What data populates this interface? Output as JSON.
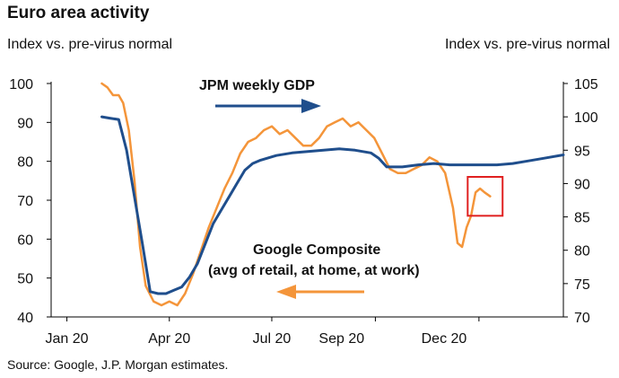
{
  "header": {
    "title": "Euro area activity",
    "left_axis_caption": "Index vs. pre-virus normal",
    "right_axis_caption": "Index vs. pre-virus normal"
  },
  "footer": {
    "source": "Source: Google, J.P. Morgan estimates."
  },
  "colors": {
    "gdp": "#1f4e8c",
    "google": "#f4953a",
    "highlight": "#e02020",
    "axis": "#000000"
  },
  "chart_data": {
    "type": "line",
    "title": "Euro area activity",
    "x_axis": {
      "type": "date",
      "range": [
        "2020-01-01",
        "2021-03-31"
      ],
      "tick_labels": [
        {
          "date": "2020-01-15",
          "label": "Jan 20"
        },
        {
          "date": "2020-04-15",
          "label": "Apr 20"
        },
        {
          "date": "2020-07-15",
          "label": "Jul 20"
        },
        {
          "date": "2020-09-15",
          "label": "Sep 20"
        },
        {
          "date": "2020-12-15",
          "label": "Dec 20"
        }
      ],
      "minor_ticks": [
        "2020-01-15",
        "2020-04-15",
        "2020-07-15",
        "2020-10-15",
        "2021-01-15"
      ]
    },
    "y_left": {
      "label": "Index vs. pre-virus normal",
      "range": [
        40,
        100
      ],
      "ticks": [
        40,
        50,
        60,
        70,
        80,
        90,
        100
      ]
    },
    "y_right": {
      "label": "Index vs. pre-virus normal",
      "range": [
        70,
        105
      ],
      "ticks": [
        70,
        75,
        80,
        85,
        90,
        95,
        100,
        105
      ]
    },
    "grid": false,
    "series": [
      {
        "name": "Google Composite (avg of retail, at home, at work)",
        "axis": "left",
        "color": "#f4953a",
        "points": [
          [
            "2020-02-15",
            100
          ],
          [
            "2020-02-20",
            99
          ],
          [
            "2020-02-25",
            97
          ],
          [
            "2020-03-01",
            97
          ],
          [
            "2020-03-05",
            95
          ],
          [
            "2020-03-10",
            88
          ],
          [
            "2020-03-15",
            75
          ],
          [
            "2020-03-20",
            58
          ],
          [
            "2020-03-25",
            48
          ],
          [
            "2020-04-01",
            44
          ],
          [
            "2020-04-08",
            43
          ],
          [
            "2020-04-15",
            44
          ],
          [
            "2020-04-22",
            43
          ],
          [
            "2020-04-29",
            46
          ],
          [
            "2020-05-06",
            51
          ],
          [
            "2020-05-13",
            57
          ],
          [
            "2020-05-20",
            63
          ],
          [
            "2020-05-27",
            68
          ],
          [
            "2020-06-03",
            73
          ],
          [
            "2020-06-10",
            77
          ],
          [
            "2020-06-17",
            82
          ],
          [
            "2020-06-24",
            85
          ],
          [
            "2020-07-01",
            86
          ],
          [
            "2020-07-08",
            88
          ],
          [
            "2020-07-15",
            89
          ],
          [
            "2020-07-22",
            87
          ],
          [
            "2020-07-29",
            88
          ],
          [
            "2020-08-05",
            86
          ],
          [
            "2020-08-12",
            84
          ],
          [
            "2020-08-19",
            84
          ],
          [
            "2020-08-26",
            86
          ],
          [
            "2020-09-02",
            89
          ],
          [
            "2020-09-09",
            90
          ],
          [
            "2020-09-16",
            91
          ],
          [
            "2020-09-23",
            89
          ],
          [
            "2020-09-30",
            90
          ],
          [
            "2020-10-07",
            88
          ],
          [
            "2020-10-14",
            86
          ],
          [
            "2020-10-21",
            82
          ],
          [
            "2020-10-28",
            78
          ],
          [
            "2020-11-04",
            77
          ],
          [
            "2020-11-11",
            77
          ],
          [
            "2020-11-18",
            78
          ],
          [
            "2020-11-25",
            79
          ],
          [
            "2020-12-02",
            81
          ],
          [
            "2020-12-09",
            80
          ],
          [
            "2020-12-16",
            77
          ],
          [
            "2020-12-23",
            68
          ],
          [
            "2020-12-27",
            59
          ],
          [
            "2020-12-31",
            58
          ],
          [
            "2021-01-04",
            63
          ],
          [
            "2021-01-08",
            66
          ],
          [
            "2021-01-12",
            72
          ],
          [
            "2021-01-16",
            73
          ],
          [
            "2021-01-20",
            72
          ],
          [
            "2021-01-25",
            71
          ]
        ]
      },
      {
        "name": "JPM weekly GDP",
        "axis": "right",
        "color": "#1f4e8c",
        "points": [
          [
            "2020-02-15",
            100
          ],
          [
            "2020-02-22",
            99.8
          ],
          [
            "2020-03-01",
            99.6
          ],
          [
            "2020-03-08",
            95
          ],
          [
            "2020-03-15",
            88
          ],
          [
            "2020-03-22",
            81
          ],
          [
            "2020-03-29",
            73.8
          ],
          [
            "2020-04-05",
            73.5
          ],
          [
            "2020-04-12",
            73.5
          ],
          [
            "2020-04-19",
            74
          ],
          [
            "2020-04-26",
            74.5
          ],
          [
            "2020-05-03",
            76
          ],
          [
            "2020-05-10",
            78
          ],
          [
            "2020-05-17",
            81
          ],
          [
            "2020-05-24",
            84
          ],
          [
            "2020-05-31",
            86
          ],
          [
            "2020-06-07",
            88
          ],
          [
            "2020-06-14",
            90
          ],
          [
            "2020-06-21",
            92
          ],
          [
            "2020-06-28",
            93
          ],
          [
            "2020-07-05",
            93.5
          ],
          [
            "2020-07-19",
            94.2
          ],
          [
            "2020-08-02",
            94.6
          ],
          [
            "2020-08-16",
            94.8
          ],
          [
            "2020-08-30",
            95
          ],
          [
            "2020-09-13",
            95.2
          ],
          [
            "2020-09-27",
            95
          ],
          [
            "2020-10-11",
            94.6
          ],
          [
            "2020-10-18",
            93.8
          ],
          [
            "2020-10-25",
            92.5
          ],
          [
            "2020-11-08",
            92.5
          ],
          [
            "2020-11-22",
            92.8
          ],
          [
            "2020-12-06",
            93
          ],
          [
            "2020-12-20",
            92.8
          ],
          [
            "2021-01-03",
            92.8
          ],
          [
            "2021-01-17",
            92.8
          ],
          [
            "2021-01-31",
            92.8
          ],
          [
            "2021-02-14",
            93
          ],
          [
            "2021-02-28",
            93.4
          ],
          [
            "2021-03-14",
            93.8
          ],
          [
            "2021-03-31",
            94.3
          ]
        ]
      }
    ],
    "annotations": [
      {
        "text": "JPM weekly GDP",
        "series": "JPM weekly GDP",
        "arrow": "right"
      },
      {
        "text": "Google Composite",
        "series": "Google Composite (avg of retail, at home, at work)",
        "arrow": "left"
      },
      {
        "text": "(avg of retail, at home, at work)",
        "series": "Google Composite (avg of retail, at home, at work)"
      }
    ],
    "highlight_box": {
      "x_range": [
        "2021-01-05",
        "2021-02-05"
      ],
      "y_left_range": [
        66,
        76
      ]
    }
  }
}
